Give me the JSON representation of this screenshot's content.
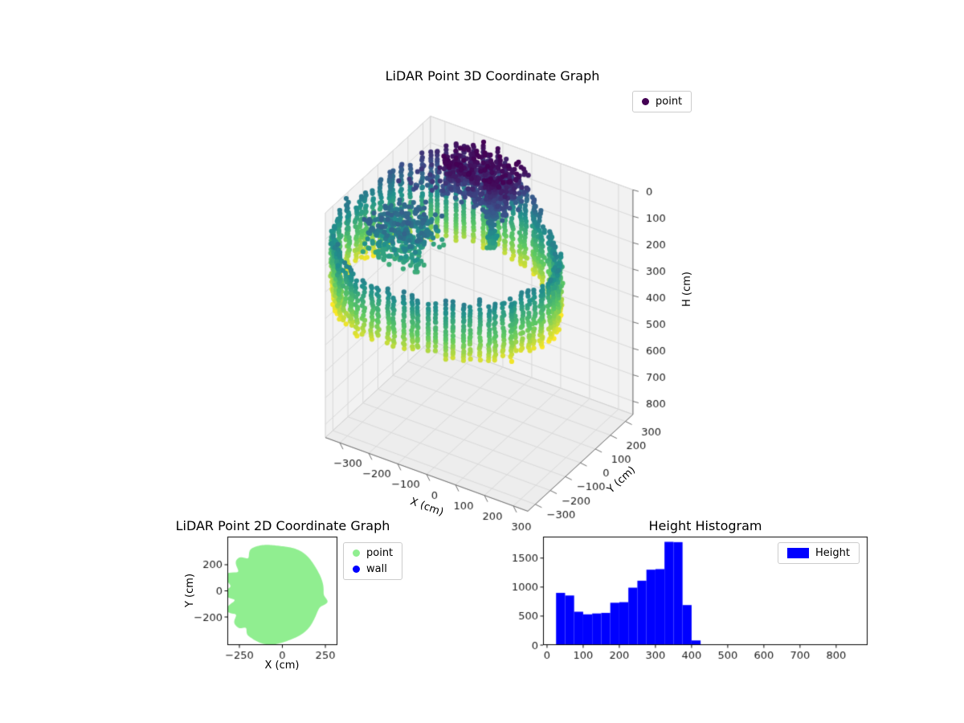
{
  "figure": {
    "background": "#ffffff"
  },
  "chart_data": [
    {
      "id": "lidar-3d",
      "type": "scatter",
      "projection": "3d",
      "title": "LiDAR Point 3D Coordinate Graph",
      "xlabel": "X (cm)",
      "ylabel": "Y (cm)",
      "zlabel": "H (cm)",
      "xticks": [
        -300,
        -200,
        -100,
        0,
        100,
        200,
        300
      ],
      "yticks": [
        -300,
        -200,
        -100,
        0,
        100,
        200,
        300
      ],
      "zticks": [
        0,
        100,
        200,
        300,
        400,
        500,
        600,
        700,
        800
      ],
      "xlim": [
        -350,
        350
      ],
      "ylim": [
        -350,
        350
      ],
      "zlim": [
        0,
        850
      ],
      "zaxis_inverted": true,
      "grid": true,
      "legend": [
        {
          "label": "point",
          "color": "#440154"
        }
      ],
      "legend_position": "upper right",
      "colormap": "viridis",
      "color_by": "height",
      "color_range": [
        0,
        430
      ],
      "point_cloud": {
        "description": "Cylindrical ring of LiDAR wall returns in vertical dotted columns, colored by height: dark purple near H=0 at the back rim, teal around H=200, yellow near the bottom rim at H~400-430. Dense dark low-height mass at the back, scattered teal mid-height points inside the ring.",
        "ring": {
          "center_x": -100,
          "center_y": -30,
          "radius": 345,
          "radius_jitter": 12,
          "angle_step_deg": 4.5,
          "h_top_base": 195,
          "h_top_back_min": 10,
          "back_angle_deg": [
            60,
            150
          ],
          "h_bottom": 415,
          "h_step": 12
        },
        "clusters": [
          {
            "name": "dense-low-back",
            "x": [
              -210,
              30
            ],
            "y": [
              120,
              280
            ],
            "h": [
              0,
              130
            ],
            "n": 500
          },
          {
            "name": "pole",
            "x": [
              -45,
              -15
            ],
            "y": [
              125,
              155
            ],
            "h": [
              0,
              260
            ],
            "n": 120
          },
          {
            "name": "interior-mid",
            "x": [
              -330,
              -150
            ],
            "y": [
              -140,
              80
            ],
            "h": [
              130,
              270
            ],
            "n": 350
          },
          {
            "name": "sparse-upper-left",
            "x": [
              -320,
              -180
            ],
            "y": [
              60,
              220
            ],
            "h": [
              70,
              140
            ],
            "n": 25
          }
        ]
      }
    },
    {
      "id": "lidar-2d",
      "type": "scatter",
      "title": "LiDAR Point 2D Coordinate Graph",
      "xlabel": "X (cm)",
      "ylabel": "Y (cm)",
      "xticks": [
        -250,
        0,
        250
      ],
      "yticks": [
        -200,
        0,
        200
      ],
      "xlim": [
        -320,
        320
      ],
      "ylim": [
        -415,
        415
      ],
      "legend": [
        {
          "label": "point",
          "color": "#90ee90"
        },
        {
          "label": "wall",
          "color": "#0000ff"
        }
      ],
      "legend_position": "outside upper right",
      "series": [
        {
          "name": "point",
          "color": "#90ee90",
          "shape": {
            "type": "filled-region",
            "center": [
              -55,
              -20
            ],
            "radius_x": 290,
            "radius_y": 380,
            "notches": [
              {
                "angle": 125,
                "depth": 0.13,
                "width": 5
              },
              {
                "angle": 148,
                "depth": 0.2,
                "width": 6
              },
              {
                "angle": 170,
                "depth": 0.15,
                "width": 6
              },
              {
                "angle": 190,
                "depth": 0.2,
                "width": 5
              },
              {
                "angle": 210,
                "depth": 0.14,
                "width": 5
              },
              {
                "angle": 232,
                "depth": 0.1,
                "width": 4
              }
            ],
            "bump_angle_deg": 351,
            "note": "Solid light-green disc of floor points, clipped at the left axis edge, small bump protruding on the right side"
          }
        },
        {
          "name": "wall",
          "color": "#0000ff",
          "note": "no wall points visible at this scale"
        }
      ]
    },
    {
      "id": "height-histogram",
      "type": "bar",
      "title": "Height Histogram",
      "legend": [
        {
          "label": "Height",
          "color": "#0000ff"
        }
      ],
      "legend_position": "upper right",
      "bar_color": "#0000ff",
      "bin_edges": [
        25,
        50,
        75,
        100,
        125,
        150,
        175,
        200,
        225,
        250,
        275,
        300,
        325,
        350,
        375,
        400,
        425
      ],
      "counts": [
        900,
        855,
        575,
        530,
        545,
        555,
        730,
        740,
        990,
        1110,
        1300,
        1310,
        1780,
        1775,
        690,
        80
      ],
      "xticks": [
        0,
        100,
        200,
        300,
        400,
        500,
        600,
        700,
        800
      ],
      "yticks": [
        0,
        500,
        1000,
        1500
      ],
      "xlim": [
        -11,
        887
      ],
      "ylim": [
        0,
        1870
      ]
    }
  ]
}
